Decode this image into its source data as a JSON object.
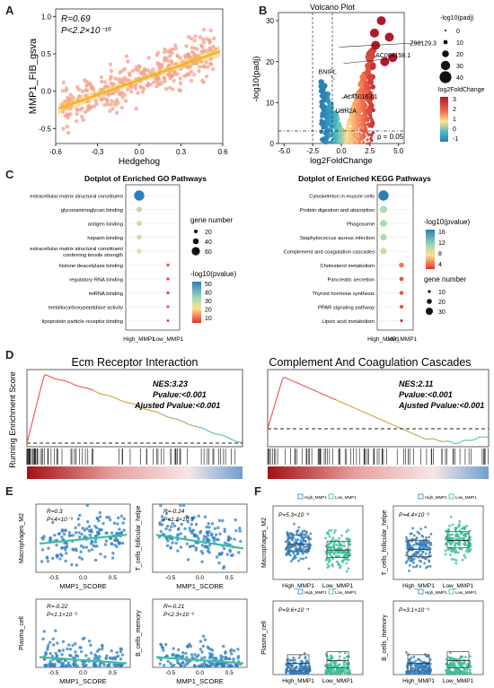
{
  "panel_letters": {
    "A": "A",
    "B": "B",
    "C": "C",
    "D": "D",
    "E": "E",
    "F": "F"
  },
  "panelA": {
    "ylabel": "MMP1_FIB_gsva",
    "xlabel": "Hedgehog",
    "stat_r": "R=0.69",
    "stat_p": "P<2.2×10⁻¹⁶",
    "xticks": [
      "-0.6",
      "-0.3",
      "0.0",
      "0.3",
      "0.6"
    ],
    "yticks": [
      "1.0",
      "0.5",
      "0.0",
      "-0.5"
    ]
  },
  "panelB": {
    "title": "Volcano Plot",
    "xlabel": "log2FoldChange",
    "ylabel": "-log10(padj)",
    "xticks": [
      "-5.0",
      "-2.5",
      "0.0",
      "2.5",
      "5.0"
    ],
    "yticks": [
      "30",
      "20",
      "10",
      "0"
    ],
    "pline": "p = 0.05",
    "genes": [
      "Z98129.3",
      "AC004158.1",
      "BNIPL",
      "AL450163.1",
      "USH2A"
    ],
    "size_legend_title": "-log10(padj)",
    "size_legend": [
      "0",
      "10",
      "20",
      "30",
      "40"
    ],
    "color_legend_title": "log2FoldChange",
    "color_legend": [
      "3",
      "2",
      "1",
      "0",
      "-1"
    ]
  },
  "chart_data": [
    {
      "type": "scatter",
      "title": "",
      "xlabel": "Hedgehog",
      "ylabel": "MMP1_FIB_gsva",
      "xlim": [
        -0.6,
        0.6
      ],
      "ylim": [
        -0.7,
        1.1
      ],
      "fit": {
        "slope": 1.2,
        "intercept": 0.15
      },
      "annotation": [
        "R=0.69",
        "P<2.2×10⁻¹⁶"
      ]
    },
    {
      "type": "scatter",
      "title": "Volcano Plot",
      "xlabel": "log2FoldChange",
      "ylabel": "-log10(padj)",
      "xlim": [
        -5,
        5
      ],
      "ylim": [
        0,
        32
      ],
      "labeled_genes": [
        "Z98129.3",
        "AC004158.1",
        "BNIPL",
        "AL450163.1",
        "USH2A"
      ],
      "threshold": "p = 0.05"
    },
    {
      "type": "scatter",
      "title": "Dotplot of Enriched GO Pathways",
      "categories": [
        "High_MMP1",
        "Low_MMP1"
      ],
      "terms": [
        "extracellular matrix structural constituent",
        "glycosaminoglycan binding",
        "antigen binding",
        "heparin binding",
        "extracellular matrix structural constituent conferring tensile strength",
        "histone deacetylase binding",
        "regulatory RNA binding",
        "miRNA binding",
        "metallocarboxypeptidase activity",
        "lipoprotein particle receptor binding"
      ],
      "group": [
        "High_MMP1",
        "High_MMP1",
        "High_MMP1",
        "High_MMP1",
        "High_MMP1",
        "Low_MMP1",
        "Low_MMP1",
        "Low_MMP1",
        "Low_MMP1",
        "Low_MMP1"
      ],
      "gene_number": [
        70,
        30,
        28,
        26,
        22,
        8,
        7,
        6,
        4,
        3
      ],
      "neg_log10_pvalue": [
        55,
        30,
        28,
        28,
        26,
        8,
        6,
        6,
        5,
        4
      ],
      "size_legend_title": "gene number",
      "size_legend": [
        "20",
        "40",
        "60"
      ],
      "color_legend_title": "-log10(pvalue)",
      "color_legend": [
        "50",
        "40",
        "30",
        "20",
        "10"
      ]
    },
    {
      "type": "scatter",
      "title": "Dotplot of Enriched KEGG Pathways",
      "categories": [
        "High_MMP1",
        "Low_MMP1"
      ],
      "terms": [
        "Cytoskeleton in muscle cells",
        "Protein digestion and absorption",
        "Phagosome",
        "Staphylococcus aureus infection",
        "Complement and coagulation cascades",
        "Cholesterol metabolism",
        "Pancreatic secretion",
        "Thyroid hormone synthesis",
        "PPAR signaling pathway",
        "Lipoic acid metabolism"
      ],
      "group": [
        "High_MMP1",
        "High_MMP1",
        "High_MMP1",
        "High_MMP1",
        "High_MMP1",
        "Low_MMP1",
        "Low_MMP1",
        "Low_MMP1",
        "Low_MMP1",
        "Low_MMP1"
      ],
      "gene_number": [
        34,
        22,
        20,
        18,
        18,
        12,
        9,
        8,
        7,
        3
      ],
      "neg_log10_pvalue": [
        17,
        11,
        11,
        11,
        10,
        5,
        4,
        4,
        4,
        3
      ],
      "size_legend_title": "gene number",
      "size_legend": [
        "10",
        "20",
        "30"
      ],
      "color_legend_title": "-log10(pvalue)",
      "color_legend": [
        "16",
        "12",
        "8",
        "4"
      ]
    },
    {
      "type": "line",
      "title": "Ecm Receptor Interaction",
      "ylabel": "Running Enrichment Score",
      "NES": "NES:3.23",
      "pvalue": "Pvalue:<0.001",
      "adj": "Ajusted Pvalue:<0.001"
    },
    {
      "type": "line",
      "title": "Complement And Coagulation Cascades",
      "NES": "NES:2.11",
      "pvalue": "Pvalue:<0.001",
      "adj": "Ajusted Pvalue:<0.001"
    }
  ],
  "panelC": {
    "go_title": "Dotplot of Enriched GO Pathways",
    "kegg_title": "Dotplot of Enriched KEGG Pathways",
    "xcats": [
      "High_MMP1",
      "Low_MMP1"
    ],
    "go_size_title": "gene number",
    "go_size": [
      "20",
      "40",
      "60"
    ],
    "go_color_title": "-log10(pvalue)",
    "go_color": [
      "50",
      "40",
      "30",
      "20",
      "10"
    ],
    "kegg_color_title": "-log10(pvalue)",
    "kegg_color": [
      "16",
      "12",
      "8",
      "4"
    ],
    "kegg_size_title": "gene number",
    "kegg_size": [
      "10",
      "20",
      "30"
    ]
  },
  "panelD": {
    "ylabel": "Running Enrichment Score",
    "left_title": "Ecm Receptor Interaction",
    "left_nes": "NES:3.23",
    "left_p": "Pvalue:<0.001",
    "left_adj": "Ajusted Pvalue:<0.001",
    "right_title": "Complement And Coagulation Cascades",
    "right_nes": "NES:2.11",
    "right_p": "Pvalue:<0.001",
    "right_adj": "Ajusted Pvalue:<0.001"
  },
  "panelE": {
    "plots": [
      {
        "ylabel": "Macrophages_M2",
        "xlabel": "MMP1_SCORE",
        "r": "R=0.3",
        "p": "P<4×10⁻⁹"
      },
      {
        "ylabel": "T_cells_follicular_helpe",
        "xlabel": "MMP1_SCORE",
        "r": "R=-0.24",
        "p": "P<1.2×10⁻⁶"
      },
      {
        "ylabel": "Plasma_cell",
        "xlabel": "MMP1_SCORE",
        "r": "R=-0.22",
        "p": "P<1.1×10⁻⁵"
      },
      {
        "ylabel": "B_cells_memory",
        "xlabel": "MMP1_SCORE",
        "r": "R=-0.21",
        "p": "P<2.3×10⁻⁵"
      }
    ],
    "xticks": [
      "-0.5",
      "0.0",
      "0.5"
    ]
  },
  "panelF": {
    "plots": [
      {
        "ylabel": "Macrophages_M2",
        "p": "P=5.3×10⁻⁹"
      },
      {
        "ylabel": "T_cells_follicular_helpe",
        "p": "P=4.4×10⁻⁵"
      },
      {
        "ylabel": "Plasma_cell",
        "p": "P=9.6×10⁻⁴"
      },
      {
        "ylabel": "B_cells_memory",
        "p": "P=3.1×10⁻³"
      }
    ],
    "xcats": [
      "High_MMP1",
      "Low_MMP1"
    ],
    "legend": [
      "High_MMP1",
      "Low_MMP1"
    ]
  },
  "colors": {
    "orange": "#f08c3a",
    "salmon": "#f4a08a",
    "blue": "#2f7fc1",
    "teal": "#3bbf9a",
    "red": "#c0392b"
  }
}
